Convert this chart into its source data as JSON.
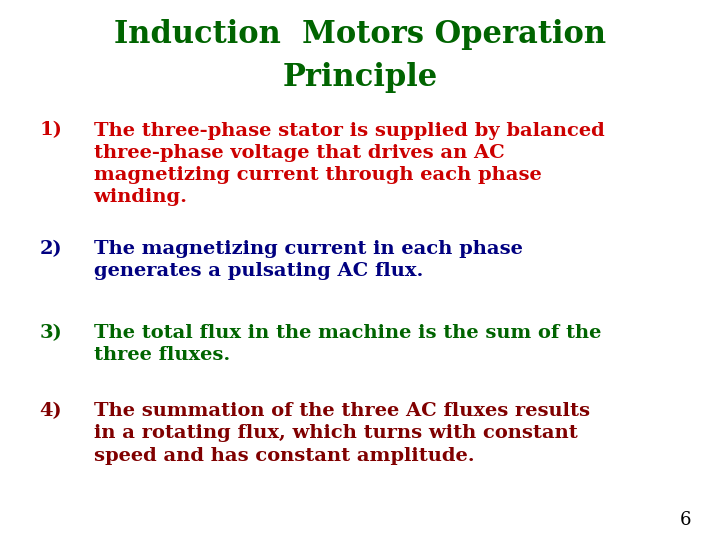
{
  "title_line1": "Induction  Motors Operation",
  "title_line2": "Principle",
  "title_color": "#006400",
  "title_fontsize": 22,
  "title_style": "normal",
  "title_weight": "bold",
  "background_color": "#ffffff",
  "page_number": "6",
  "items": [
    {
      "number": "1)",
      "text": "The three-phase stator is supplied by balanced\nthree-phase voltage that drives an AC\nmagnetizing current through each phase\nwinding.",
      "color": "#cc0000",
      "number_color": "#cc0000"
    },
    {
      "number": "2)",
      "text": "The magnetizing current in each phase\ngenerates a pulsating AC flux.",
      "color": "#000080",
      "number_color": "#000080"
    },
    {
      "number": "3)",
      "text": "The total flux in the machine is the sum of the\nthree fluxes.",
      "color": "#006400",
      "number_color": "#006400"
    },
    {
      "number": "4)",
      "text": "The summation of the three AC fluxes results\nin a rotating flux, which turns with constant\nspeed and has constant amplitude.",
      "color": "#800000",
      "number_color": "#800000"
    }
  ],
  "item_fontsize": 14,
  "item_weight": "bold",
  "number_fontsize": 14
}
